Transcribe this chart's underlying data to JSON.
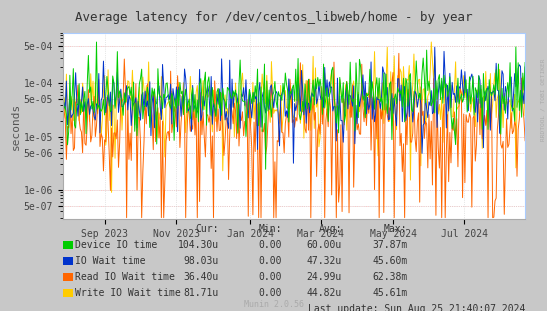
{
  "title": "Average latency for /dev/centos_libweb/home - by year",
  "ylabel": "seconds",
  "bg_color": "#c8c8c8",
  "plot_bg_color": "#ffffff",
  "grid_color": "#d0d0d0",
  "right_label": "RRDTOOL / TOBI OETIKER",
  "x_tick_labels": [
    "Sep 2023",
    "Nov 2023",
    "Jan 2024",
    "Mar 2024",
    "May 2024",
    "Jul 2024"
  ],
  "x_tick_pos": [
    0.09,
    0.245,
    0.405,
    0.558,
    0.715,
    0.868
  ],
  "y_ticks": [
    5e-07,
    1e-06,
    5e-06,
    1e-05,
    5e-05,
    0.0001,
    0.0005
  ],
  "y_tick_labels": [
    "5e-07",
    "1e-06",
    "5e-06",
    "1e-05",
    "5e-05",
    "1e-04",
    "5e-04"
  ],
  "ylim_min": 2.8e-07,
  "ylim_max": 0.0009,
  "colors": {
    "device_io": "#00cc00",
    "io_wait": "#0033cc",
    "read_io": "#ff6600",
    "write_io": "#ffcc00"
  },
  "legend": [
    {
      "label": "Device IO time",
      "color": "#00cc00",
      "cur": "104.30u",
      "min": "0.00",
      "avg": "60.00u",
      "max": "37.87m"
    },
    {
      "label": "IO Wait time",
      "color": "#0033cc",
      "cur": "98.03u",
      "min": "0.00",
      "avg": "47.32u",
      "max": "45.60m"
    },
    {
      "label": "Read IO Wait time",
      "color": "#ff6600",
      "cur": "36.40u",
      "min": "0.00",
      "avg": "24.99u",
      "max": "62.38m"
    },
    {
      "label": "Write IO Wait time",
      "color": "#ffcc00",
      "cur": "81.71u",
      "min": "0.00",
      "avg": "44.82u",
      "max": "45.61m"
    }
  ],
  "last_update": "Last update: Sun Aug 25 21:40:07 2024",
  "munin_version": "Munin 2.0.56",
  "border_color": "#aaaaaa",
  "ref_line_color": "#ffaaaa"
}
